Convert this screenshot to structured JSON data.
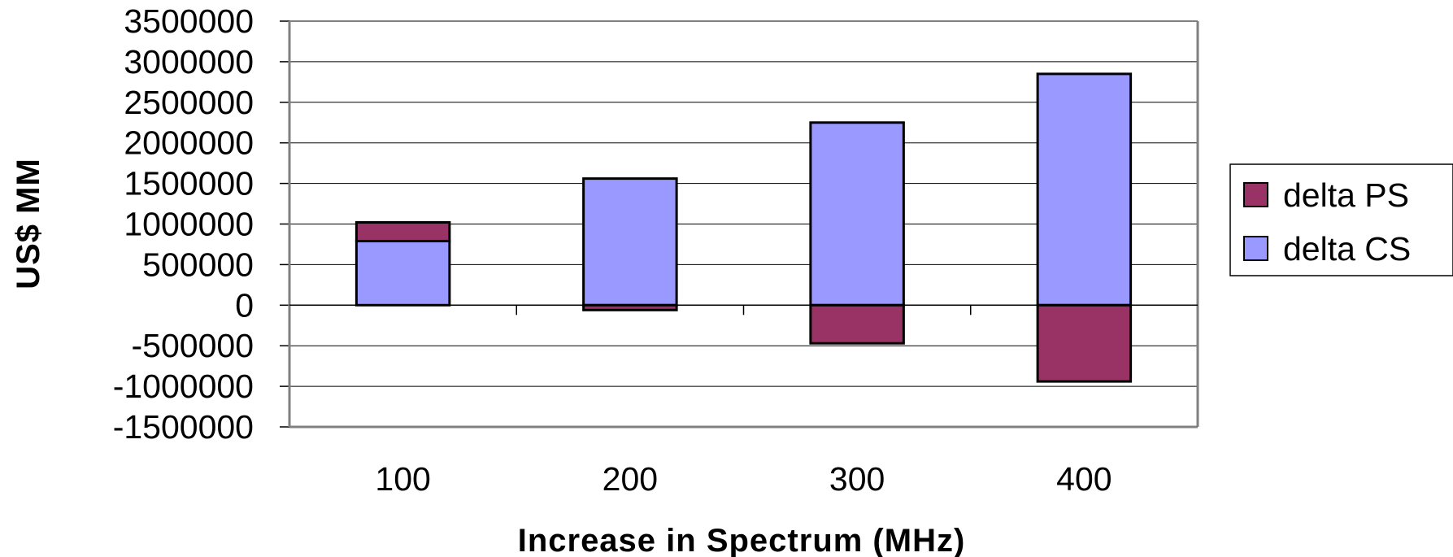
{
  "chart_data": {
    "type": "bar",
    "stacked": true,
    "categories": [
      "100",
      "200",
      "300",
      "400"
    ],
    "series": [
      {
        "name": "delta PS",
        "color": "#993366",
        "values": [
          230000,
          -60000,
          -470000,
          -940000
        ]
      },
      {
        "name": "delta CS",
        "color": "#9999FF",
        "values": [
          790000,
          1560000,
          2250000,
          2850000
        ]
      }
    ],
    "xlabel": "Increase in Spectrum (MHz)",
    "ylabel": "US$ MM",
    "ylim": [
      -1500000,
      3500000
    ],
    "yticks": [
      "3500000",
      "3000000",
      "2500000",
      "2000000",
      "1500000",
      "1000000",
      "500000",
      "0",
      "-500000",
      "-1000000",
      "-1500000"
    ],
    "grid": true,
    "legend_position": "right"
  }
}
